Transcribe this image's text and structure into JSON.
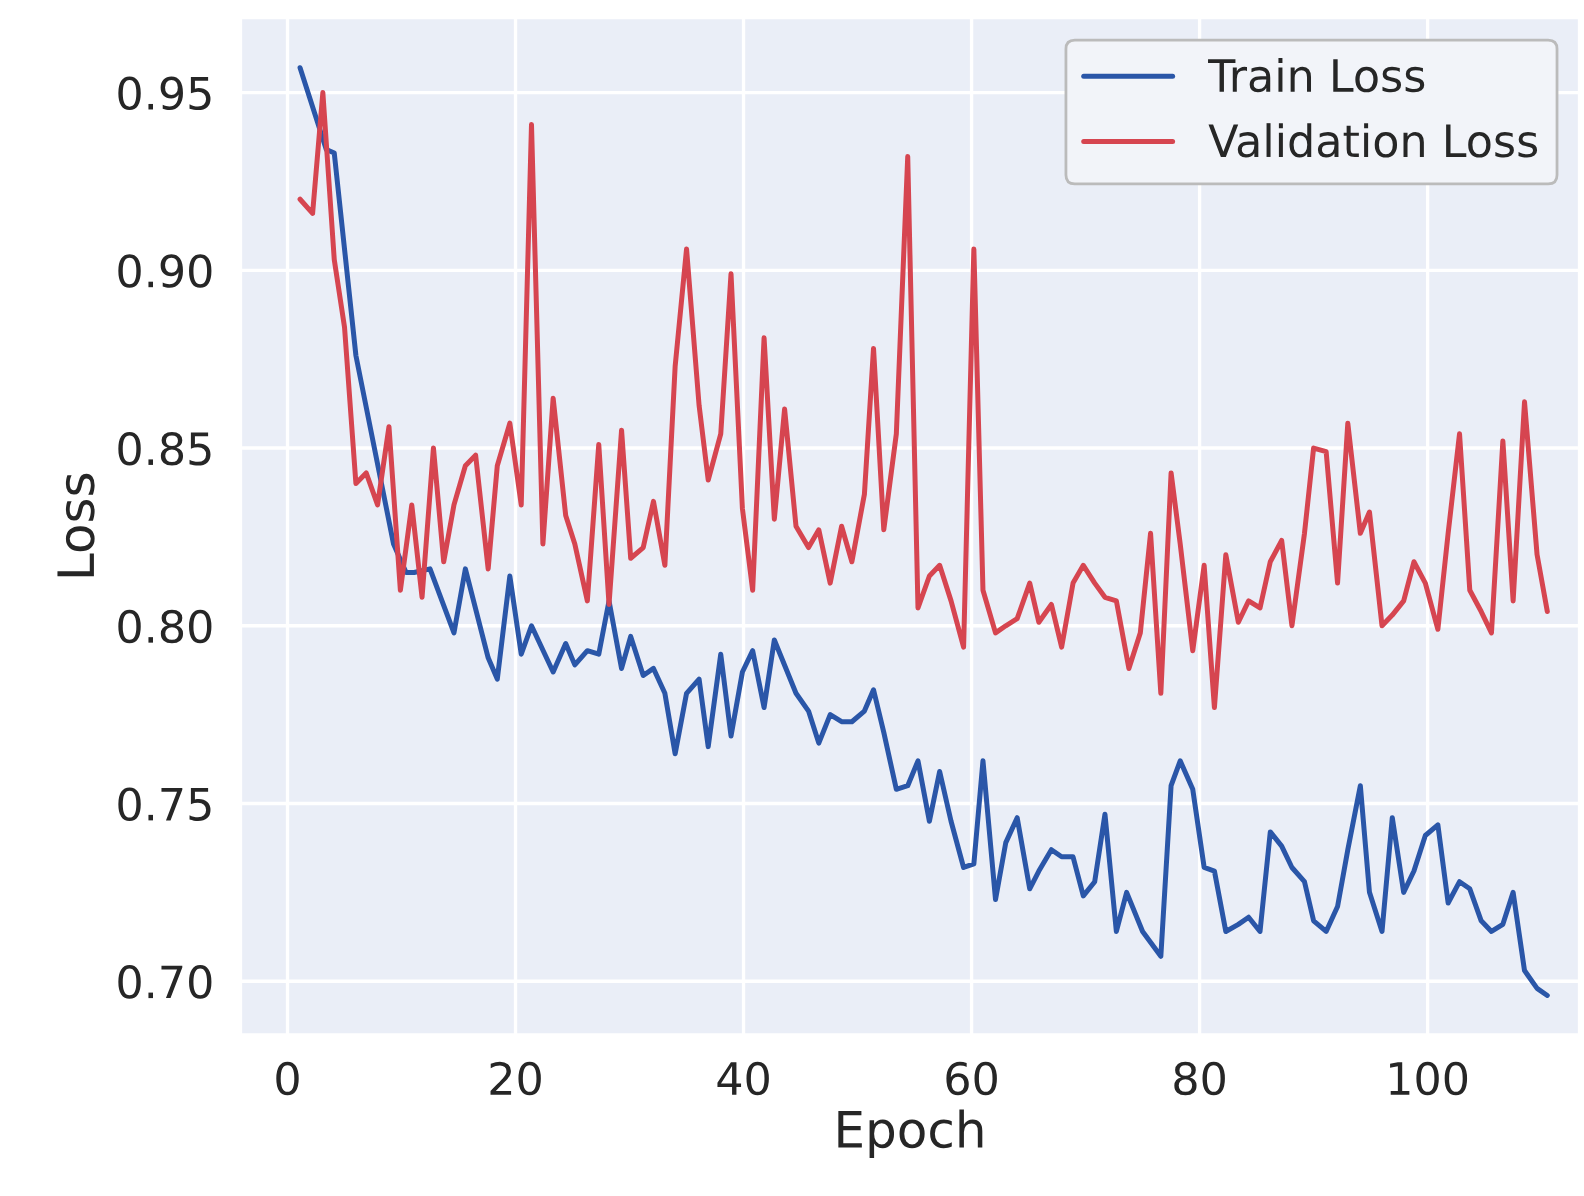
{
  "chart_data": {
    "type": "line",
    "xlabel": "Epoch",
    "ylabel": "Loss",
    "xlim": [
      -4.1,
      113.3
    ],
    "ylim": [
      0.685,
      0.971
    ],
    "xticks": [
      0,
      20,
      40,
      60,
      80,
      100
    ],
    "yticks": [
      {
        "value": 0.7,
        "label": "0.70"
      },
      0.75,
      {
        "value": 0.8,
        "label": "0.80"
      },
      0.85,
      {
        "value": 0.9,
        "label": "0.90"
      },
      0.95
    ],
    "grid": true,
    "legend": "top right",
    "line_style": "solid",
    "series": [
      {
        "name": "Train Loss",
        "color": "#2a56a8",
        "x": [
          1.1,
          3.4,
          4.1,
          6.0,
          9.3,
          10.4,
          11.1,
          12.5,
          14.6,
          15.6,
          17.6,
          18.4,
          19.5,
          20.5,
          21.4,
          23.3,
          24.4,
          25.2,
          26.3,
          27.3,
          28.2,
          29.3,
          30.1,
          31.2,
          32.1,
          33.1,
          34.0,
          35.0,
          36.1,
          36.9,
          38.0,
          38.9,
          39.9,
          40.8,
          41.8,
          42.7,
          44.6,
          45.7,
          46.6,
          47.6,
          48.6,
          49.5,
          50.6,
          51.4,
          52.3,
          53.4,
          54.4,
          55.3,
          56.3,
          57.2,
          58.2,
          59.3,
          60.2,
          61.0,
          62.1,
          63.0,
          64.0,
          65.1,
          65.9,
          67.0,
          67.9,
          68.9,
          69.8,
          70.8,
          71.7,
          72.7,
          73.6,
          75.0,
          76.6,
          77.5,
          78.3,
          79.4,
          80.4,
          81.3,
          82.3,
          83.4,
          84.3,
          85.3,
          86.2,
          87.2,
          88.1,
          89.2,
          90.0,
          91.1,
          92.1,
          93.0,
          94.1,
          94.9,
          96.0,
          96.9,
          97.9,
          98.8,
          99.8,
          100.9,
          101.8,
          102.8,
          103.7,
          104.7,
          105.6,
          106.6,
          107.5,
          108.5,
          109.6,
          110.5
        ],
        "values": [
          0.957,
          0.934,
          0.933,
          0.876,
          0.823,
          0.815,
          0.815,
          0.816,
          0.798,
          0.816,
          0.791,
          0.785,
          0.814,
          0.792,
          0.8,
          0.787,
          0.795,
          0.789,
          0.793,
          0.792,
          0.807,
          0.788,
          0.797,
          0.786,
          0.788,
          0.781,
          0.764,
          0.781,
          0.785,
          0.766,
          0.792,
          0.769,
          0.787,
          0.793,
          0.777,
          0.796,
          0.781,
          0.776,
          0.767,
          0.775,
          0.773,
          0.773,
          0.776,
          0.782,
          0.77,
          0.754,
          0.755,
          0.762,
          0.745,
          0.759,
          0.745,
          0.732,
          0.733,
          0.762,
          0.723,
          0.739,
          0.746,
          0.726,
          0.731,
          0.737,
          0.735,
          0.735,
          0.724,
          0.728,
          0.747,
          0.714,
          0.725,
          0.714,
          0.707,
          0.755,
          0.762,
          0.754,
          0.732,
          0.731,
          0.714,
          0.716,
          0.718,
          0.714,
          0.742,
          0.738,
          0.732,
          0.728,
          0.717,
          0.714,
          0.721,
          0.737,
          0.755,
          0.725,
          0.714,
          0.746,
          0.725,
          0.731,
          0.741,
          0.744,
          0.722,
          0.728,
          0.726,
          0.717,
          0.714,
          0.716,
          0.725,
          0.703,
          0.698,
          0.696
        ]
      },
      {
        "name": "Validation Loss",
        "color": "#d64550",
        "x": [
          1.1,
          2.2,
          3.1,
          4.1,
          5.0,
          6.0,
          6.9,
          7.9,
          8.9,
          9.9,
          10.9,
          11.8,
          12.8,
          13.7,
          14.6,
          15.6,
          16.5,
          17.6,
          18.4,
          19.5,
          20.5,
          21.4,
          22.4,
          23.3,
          24.4,
          25.2,
          26.3,
          27.3,
          28.2,
          29.3,
          30.1,
          31.2,
          32.1,
          33.1,
          34.0,
          35.0,
          36.1,
          36.9,
          38.0,
          38.9,
          39.9,
          40.8,
          41.8,
          42.7,
          43.6,
          44.6,
          45.7,
          46.6,
          47.6,
          48.6,
          49.5,
          50.6,
          51.4,
          52.3,
          53.4,
          54.4,
          55.3,
          56.3,
          57.2,
          58.2,
          59.3,
          60.2,
          61.0,
          62.1,
          63.0,
          64.0,
          65.1,
          65.9,
          67.0,
          67.9,
          68.9,
          69.8,
          70.8,
          71.7,
          72.7,
          73.8,
          74.8,
          75.7,
          76.6,
          77.5,
          78.3,
          79.4,
          80.4,
          81.3,
          82.3,
          83.4,
          84.3,
          85.3,
          86.2,
          87.2,
          88.1,
          89.2,
          90.0,
          91.1,
          92.1,
          93.0,
          94.1,
          94.9,
          96.0,
          96.9,
          97.9,
          98.8,
          99.8,
          100.9,
          101.8,
          102.8,
          103.7,
          104.7,
          105.6,
          106.6,
          107.5,
          108.5,
          109.6,
          110.5
        ],
        "values": [
          0.92,
          0.916,
          0.95,
          0.903,
          0.884,
          0.84,
          0.843,
          0.834,
          0.856,
          0.81,
          0.834,
          0.808,
          0.85,
          0.818,
          0.834,
          0.845,
          0.848,
          0.816,
          0.845,
          0.857,
          0.834,
          0.941,
          0.823,
          0.864,
          0.831,
          0.823,
          0.807,
          0.851,
          0.806,
          0.855,
          0.819,
          0.822,
          0.835,
          0.817,
          0.873,
          0.906,
          0.862,
          0.841,
          0.854,
          0.899,
          0.833,
          0.81,
          0.881,
          0.83,
          0.861,
          0.828,
          0.822,
          0.827,
          0.812,
          0.828,
          0.818,
          0.837,
          0.878,
          0.827,
          0.854,
          0.932,
          0.805,
          0.814,
          0.817,
          0.807,
          0.794,
          0.906,
          0.81,
          0.798,
          0.8,
          0.802,
          0.812,
          0.801,
          0.806,
          0.794,
          0.812,
          0.817,
          0.812,
          0.808,
          0.807,
          0.788,
          0.798,
          0.826,
          0.781,
          0.843,
          0.823,
          0.793,
          0.817,
          0.777,
          0.82,
          0.801,
          0.807,
          0.805,
          0.818,
          0.824,
          0.8,
          0.826,
          0.85,
          0.849,
          0.812,
          0.857,
          0.826,
          0.832,
          0.8,
          0.803,
          0.807,
          0.818,
          0.812,
          0.799,
          0.826,
          0.854,
          0.81,
          0.804,
          0.798,
          0.852,
          0.807,
          0.863,
          0.82,
          0.804
        ]
      }
    ]
  }
}
